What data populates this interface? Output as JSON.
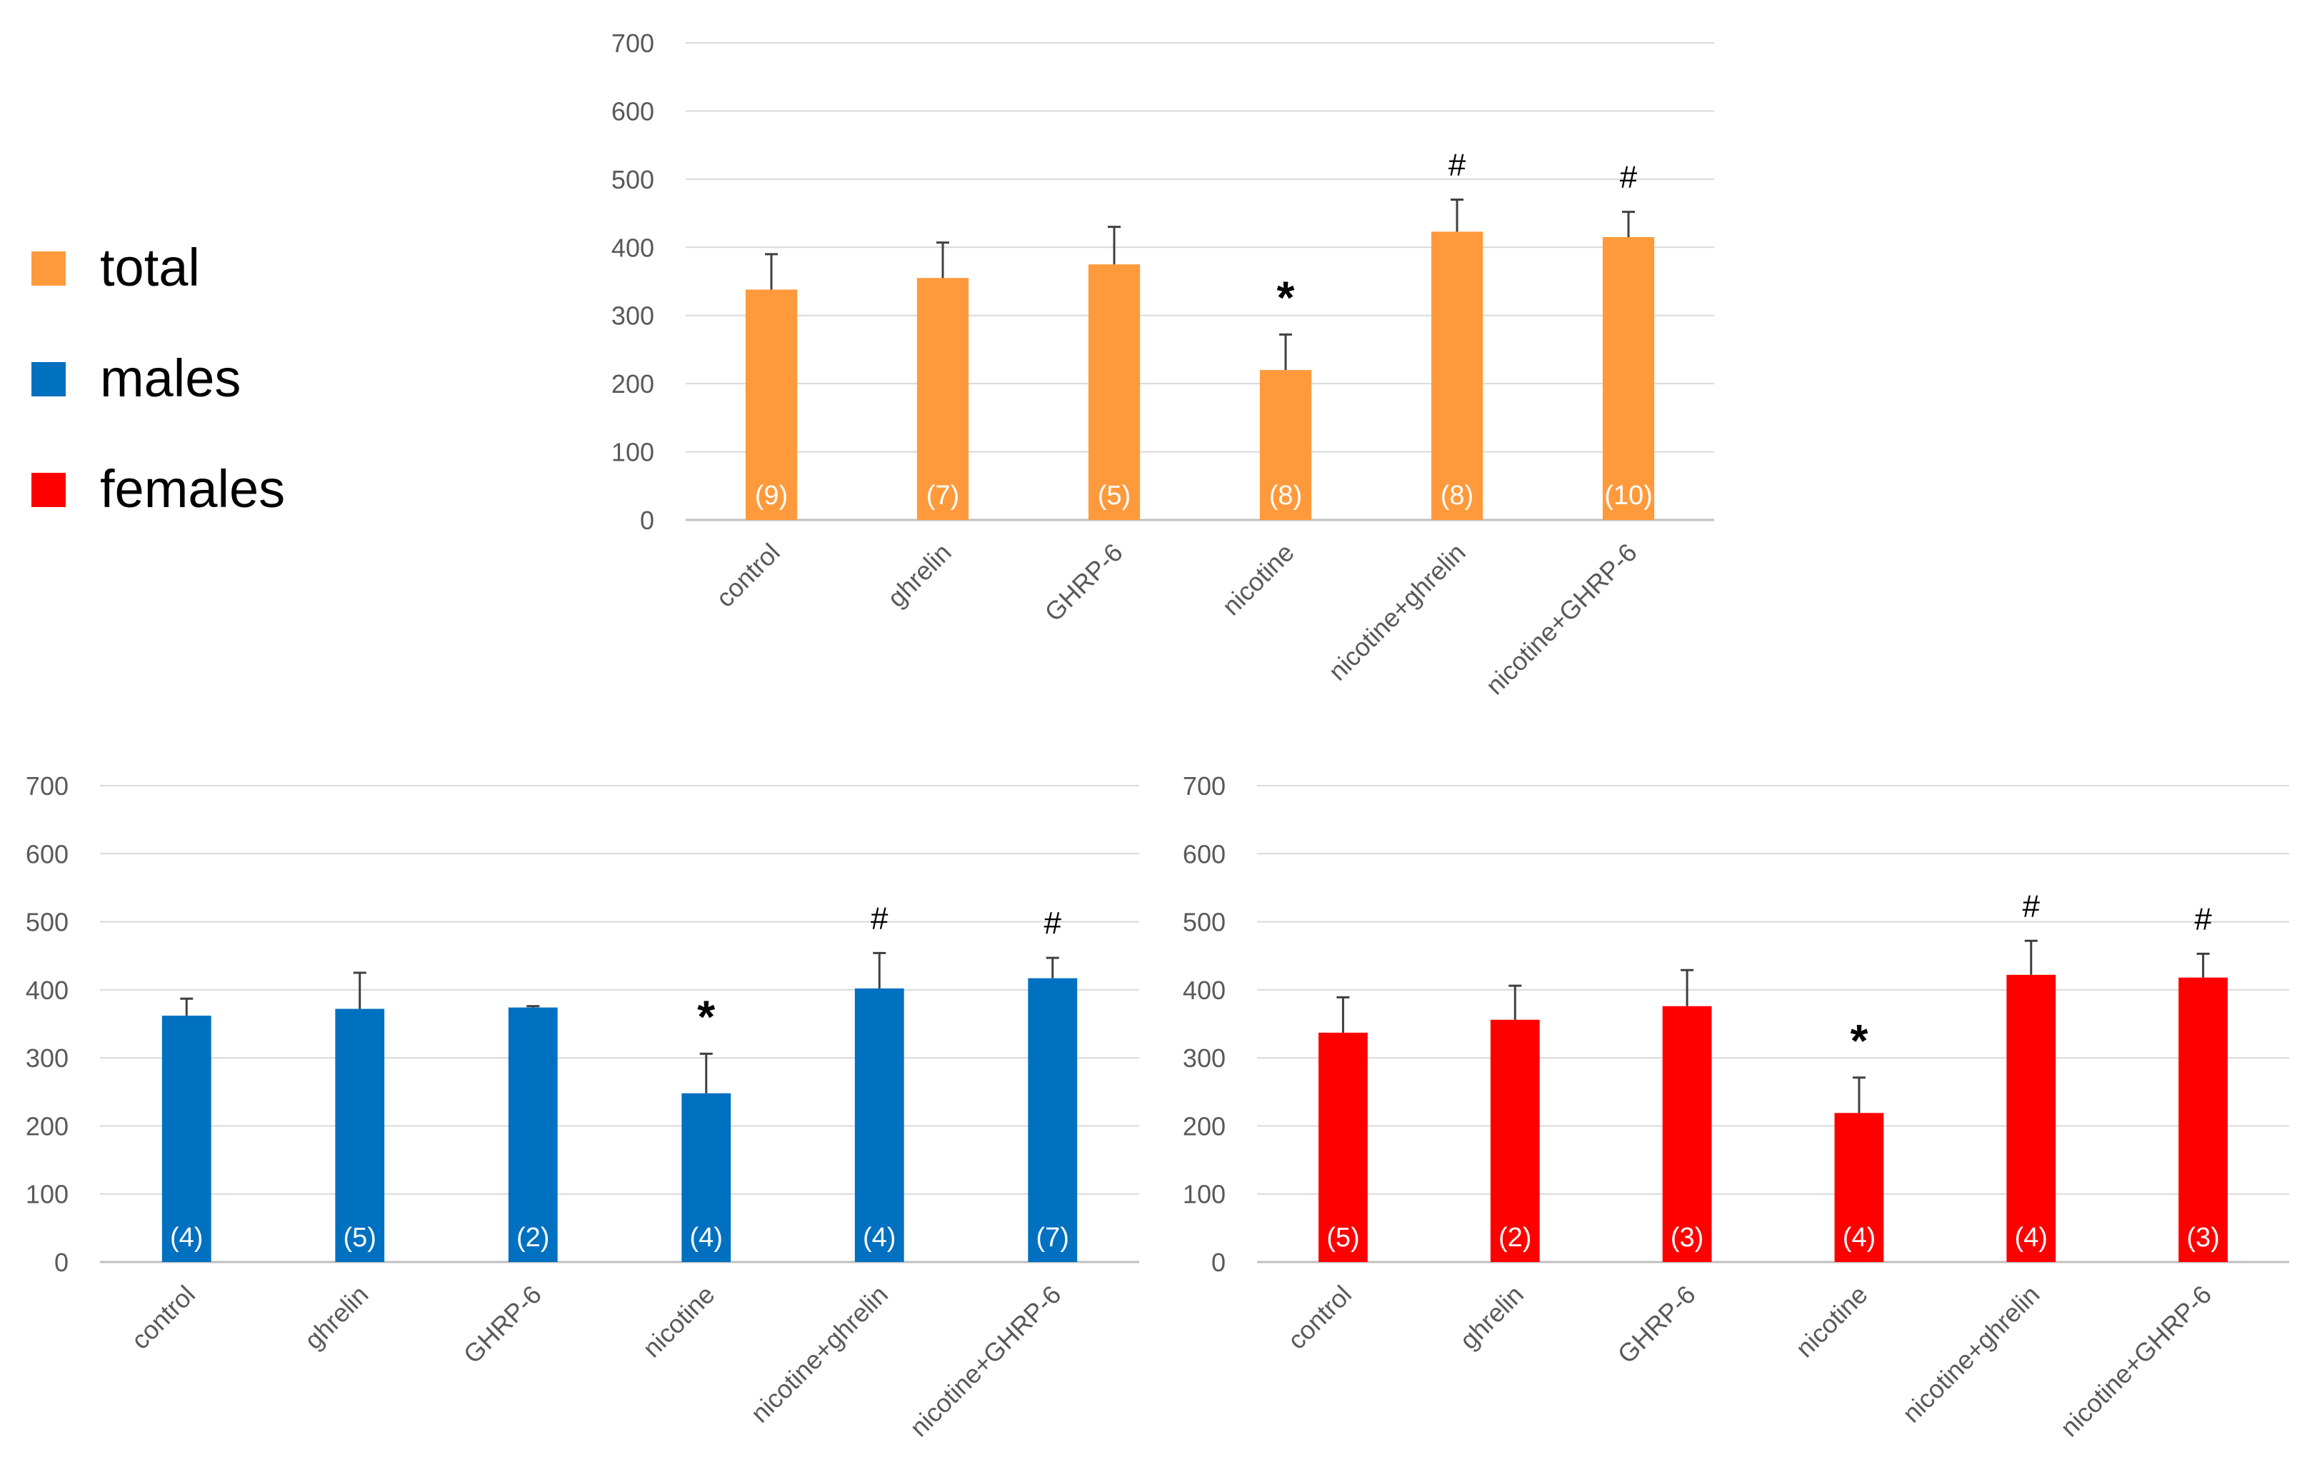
{
  "legend": {
    "items": [
      {
        "label": "total",
        "color": "#FF9A3C"
      },
      {
        "label": "males",
        "color": "#0070C0"
      },
      {
        "label": "females",
        "color": "#FF0000"
      }
    ]
  },
  "chart_data": [
    {
      "type": "bar",
      "name": "total",
      "color": "#FF9A3C",
      "categories": [
        "control",
        "ghrelin",
        "GHRP-6",
        "nicotine",
        "nicotine+ghrelin",
        "nicotine+GHRP-6"
      ],
      "values": [
        338,
        355,
        375,
        220,
        423,
        415
      ],
      "errors": [
        52,
        52,
        55,
        52,
        47,
        37
      ],
      "n_labels": [
        "(9)",
        "(7)",
        "(5)",
        "(8)",
        "(8)",
        "(10)"
      ],
      "significance": [
        "",
        "",
        "",
        "*",
        "#",
        "#"
      ],
      "yticks": [
        "0",
        "100",
        "200",
        "300",
        "400",
        "500",
        "600",
        "700"
      ],
      "ylim": [
        0,
        700
      ],
      "grid": true
    },
    {
      "type": "bar",
      "name": "males",
      "color": "#0070C0",
      "categories": [
        "control",
        "ghrelin",
        "GHRP-6",
        "nicotine",
        "nicotine+ghrelin",
        "nicotine+GHRP-6"
      ],
      "values": [
        362,
        372,
        374,
        248,
        402,
        417
      ],
      "errors": [
        25,
        53,
        2,
        58,
        52,
        30
      ],
      "n_labels": [
        "(4)",
        "(5)",
        "(2)",
        "(4)",
        "(4)",
        "(7)"
      ],
      "significance": [
        "",
        "",
        "",
        "*",
        "#",
        "#"
      ],
      "yticks": [
        "0",
        "100",
        "200",
        "300",
        "400",
        "500",
        "600",
        "700"
      ],
      "ylim": [
        0,
        700
      ],
      "grid": true
    },
    {
      "type": "bar",
      "name": "females",
      "color": "#FF0000",
      "categories": [
        "control",
        "ghrelin",
        "GHRP-6",
        "nicotine",
        "nicotine+ghrelin",
        "nicotine+GHRP-6"
      ],
      "values": [
        337,
        356,
        376,
        219,
        422,
        418
      ],
      "errors": [
        52,
        50,
        53,
        52,
        50,
        35
      ],
      "n_labels": [
        "(5)",
        "(2)",
        "(3)",
        "(4)",
        "(4)",
        "(3)"
      ],
      "significance": [
        "",
        "",
        "",
        "*",
        "#",
        "#"
      ],
      "yticks": [
        "0",
        "100",
        "200",
        "300",
        "400",
        "500",
        "600",
        "700"
      ],
      "ylim": [
        0,
        700
      ],
      "grid": true
    }
  ]
}
